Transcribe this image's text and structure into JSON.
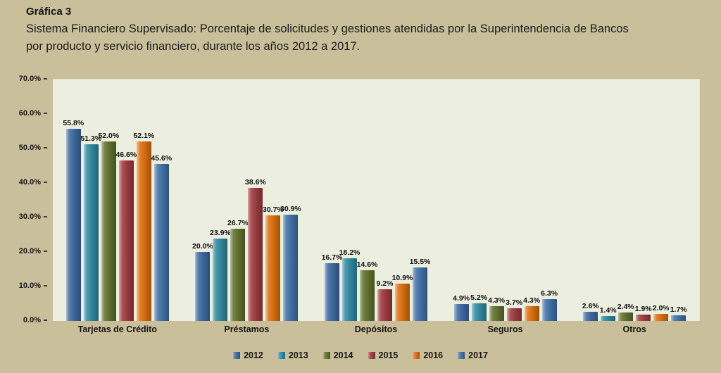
{
  "header": {
    "label": "Gráfica 3",
    "subtitle_line1": "Sistema Financiero Supervisado: Porcentaje de solicitudes y gestiones atendidas por la Superintendencia de Bancos",
    "subtitle_line2": "por producto y servicio financiero, durante los años 2012 a 2017."
  },
  "colors": {
    "page_background": "#C9BF9A",
    "plot_background": "#ECEFDF",
    "text": "#141414"
  },
  "chart_data": {
    "type": "bar",
    "title": "Gráfica 3 — Sistema Financiero Supervisado: Porcentaje de solicitudes y gestiones atendidas por la Superintendencia de Bancos por producto y servicio financiero, durante los años 2012 a 2017.",
    "categories": [
      "Tarjetas de Crédito",
      "Préstamos",
      "Depósitos",
      "Seguros",
      "Otros"
    ],
    "series": [
      {
        "name": "2012",
        "color": "#3E6BA0",
        "values": [
          55.8,
          20.0,
          16.7,
          4.9,
          2.6
        ]
      },
      {
        "name": "2013",
        "color": "#328BA2",
        "values": [
          51.3,
          23.9,
          18.2,
          5.2,
          1.4
        ]
      },
      {
        "name": "2014",
        "color": "#62722F",
        "values": [
          52.0,
          26.7,
          14.6,
          4.3,
          2.4
        ]
      },
      {
        "name": "2015",
        "color": "#A03C40",
        "values": [
          46.6,
          38.6,
          9.2,
          3.7,
          1.9
        ]
      },
      {
        "name": "2016",
        "color": "#DD7010",
        "values": [
          52.1,
          30.7,
          10.9,
          4.3,
          2.0
        ]
      },
      {
        "name": "2017",
        "color": "#4273A9",
        "values": [
          45.6,
          30.9,
          15.5,
          6.3,
          1.7
        ]
      }
    ],
    "xlabel": "",
    "ylabel": "",
    "ylim": [
      0,
      70
    ],
    "yticks": [
      "0.0%",
      "10.0%",
      "20.0%",
      "30.0%",
      "40.0%",
      "50.0%",
      "60.0%",
      "70.0%"
    ],
    "grid": false,
    "legend_position": "bottom",
    "value_label_suffix": "%"
  }
}
